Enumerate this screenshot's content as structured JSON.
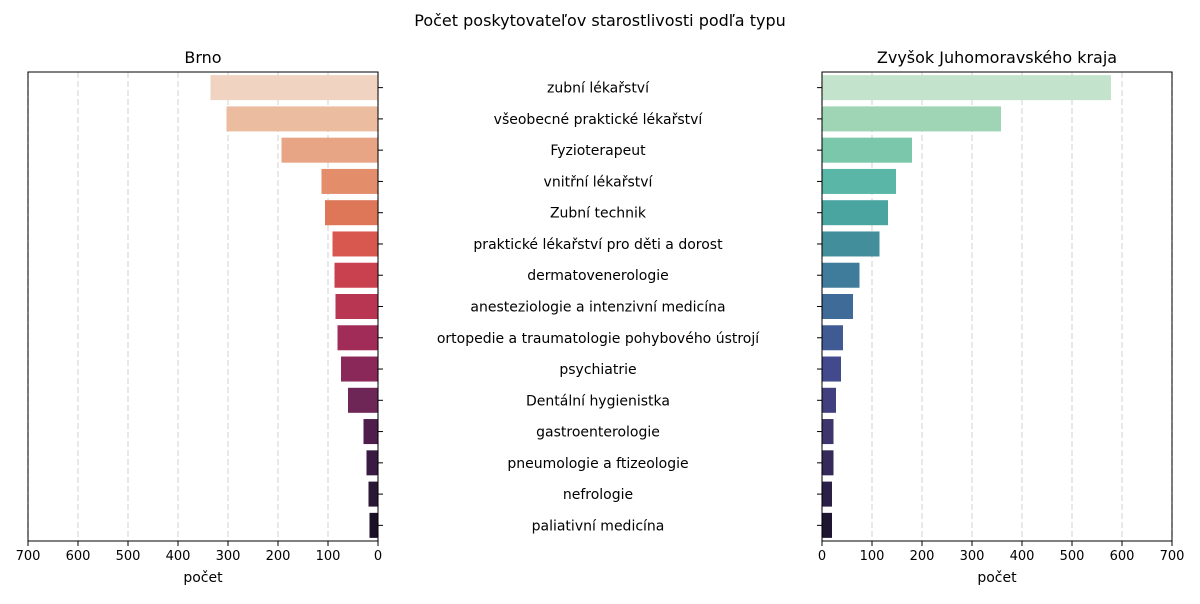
{
  "chart_data": {
    "type": "bar",
    "title": "Počet poskytovateľov starostlivosti podľa typu",
    "categories": [
      "zubní lékařství",
      "všeobecné praktické lékařství",
      "Fyzioterapeut",
      "vnitřní lékařství",
      "Zubní technik",
      "praktické lékařství pro děti a dorost",
      "dermatovenerologie",
      "anesteziologie a intenzivní medicína",
      "ortopedie a traumatologie pohybového ústrojí",
      "psychiatrie",
      "Dentální hygienistka",
      "gastroenterologie",
      "pneumologie a ftizeologie",
      "nefrologie",
      "paliativní medicína"
    ],
    "panels": [
      {
        "title": "Brno",
        "xlabel": "počet",
        "xlim": [
          700,
          0
        ],
        "xticks": [
          700,
          600,
          500,
          400,
          300,
          200,
          100,
          0
        ],
        "values": [
          335,
          303,
          193,
          113,
          106,
          91,
          87,
          85,
          81,
          74,
          60,
          29,
          23,
          19,
          17
        ],
        "colors": [
          "#f0d3c1",
          "#ebbca0",
          "#e7a585",
          "#e38d6a",
          "#de7658",
          "#d8574f",
          "#c9414e",
          "#b93652",
          "#a22c58",
          "#8a2959",
          "#6e2656",
          "#4e1d4b",
          "#3a1a42",
          "#2a1736",
          "#1b0f27"
        ]
      },
      {
        "title": "Zvyšok Juhomoravského kraja",
        "xlabel": "počet",
        "xlim": [
          0,
          700
        ],
        "xticks": [
          0,
          100,
          200,
          300,
          400,
          500,
          600,
          700
        ],
        "values": [
          578,
          358,
          180,
          148,
          132,
          115,
          75,
          62,
          42,
          38,
          28,
          23,
          23,
          20,
          20
        ],
        "colors": [
          "#c4e3cc",
          "#9fd4b5",
          "#7ac7ab",
          "#5ab7a7",
          "#4aa5a1",
          "#438e9b",
          "#3f7b9a",
          "#3e6b98",
          "#405a94",
          "#42498c",
          "#423f7e",
          "#3d356c",
          "#35295a",
          "#2a1f44",
          "#1e1530"
        ]
      }
    ],
    "grid": "vertical"
  }
}
